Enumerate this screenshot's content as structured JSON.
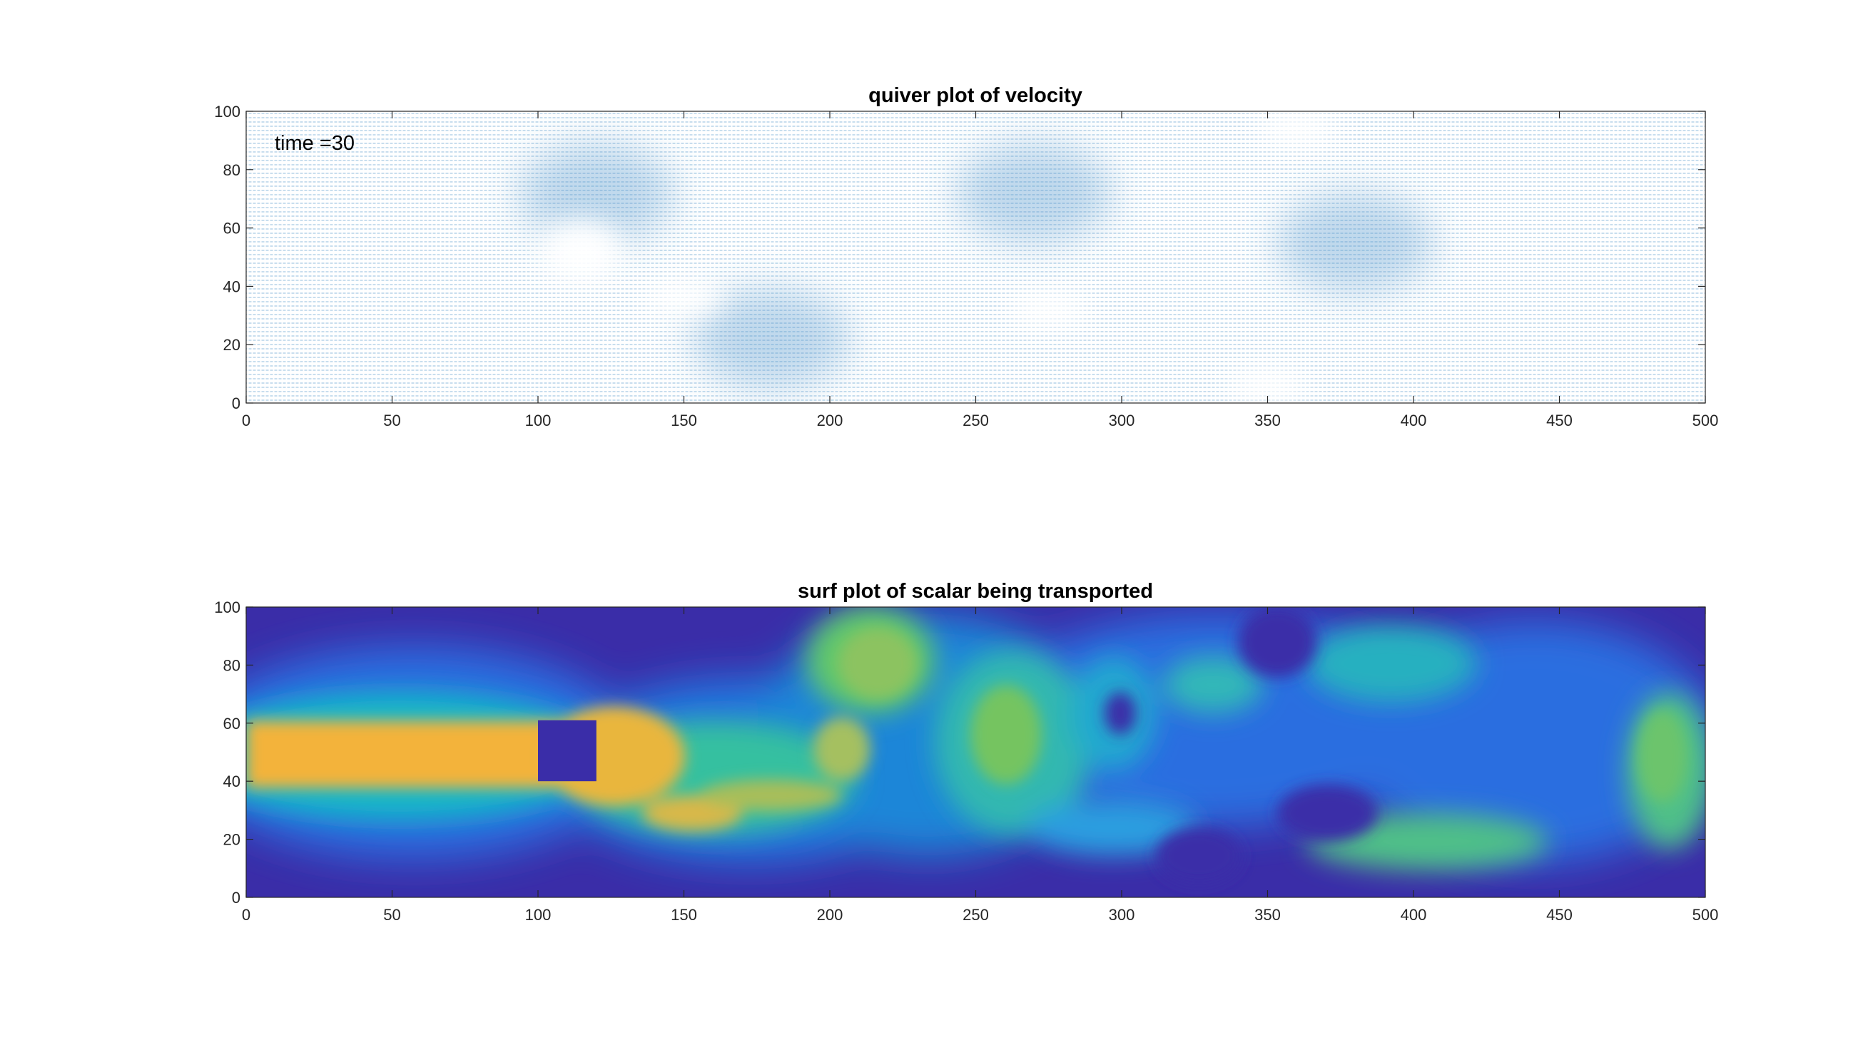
{
  "chart_data": [
    {
      "type": "quiver",
      "title": "quiver plot of velocity",
      "xlabel": "",
      "ylabel": "",
      "xlim": [
        0,
        500
      ],
      "ylim": [
        0,
        100
      ],
      "xticks": [
        "0",
        "50",
        "100",
        "150",
        "200",
        "250",
        "300",
        "350",
        "400",
        "450",
        "500"
      ],
      "yticks": [
        "0",
        "20",
        "40",
        "60",
        "80",
        "100"
      ],
      "annotation": "time =30",
      "arrow_color": "#4a90c8",
      "grid": false,
      "wake_regions": [
        {
          "x": 115,
          "y": 52,
          "label": "low speed bubble behind obstacle"
        },
        {
          "x": 150,
          "y": 36
        },
        {
          "x": 275,
          "y": 32
        },
        {
          "x": 360,
          "y": 94
        },
        {
          "x": 350,
          "y": 6
        }
      ],
      "strong_regions": [
        {
          "x": 270,
          "y": 72
        },
        {
          "x": 380,
          "y": 55
        },
        {
          "x": 180,
          "y": 22
        },
        {
          "x": 120,
          "y": 72
        }
      ]
    },
    {
      "type": "heatmap",
      "title": "surf plot of scalar being transported",
      "xlabel": "",
      "ylabel": "",
      "xlim": [
        0,
        500
      ],
      "ylim": [
        0,
        100
      ],
      "xticks": [
        "0",
        "50",
        "100",
        "150",
        "200",
        "250",
        "300",
        "350",
        "400",
        "450",
        "500"
      ],
      "yticks": [
        "0",
        "20",
        "40",
        "60",
        "80",
        "100"
      ],
      "colormap": "parula",
      "obstacle": {
        "x": [
          100,
          120
        ],
        "y": [
          40,
          61
        ]
      },
      "grid": false
    }
  ]
}
